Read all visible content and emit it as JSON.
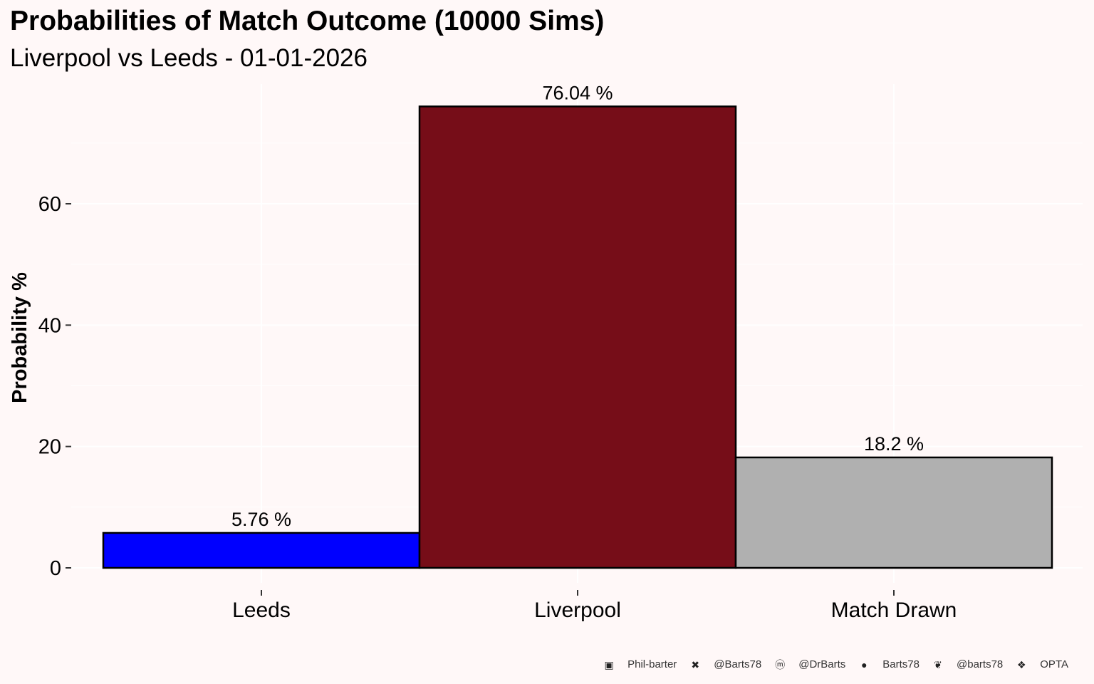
{
  "chart_data": {
    "type": "bar",
    "title": "Probabilities of Match Outcome (10000 Sims)",
    "subtitle": "Liverpool vs Leeds - 01-01-2026",
    "ylabel": "Probability %",
    "xlabel": "",
    "categories": [
      "Leeds",
      "Liverpool",
      "Match Drawn"
    ],
    "values": [
      5.76,
      76.04,
      18.2
    ],
    "data_labels": [
      "5.76  %",
      "76.04  %",
      "18.2  %"
    ],
    "colors": [
      "#0000ff",
      "#760d18",
      "#b0b0b0"
    ],
    "ylim": [
      0,
      80
    ],
    "yticks": [
      0,
      20,
      40,
      60
    ],
    "grid": true
  },
  "footer": {
    "items": [
      {
        "icon": "linkedin-icon",
        "glyph": "▣",
        "text": "Phil-barter"
      },
      {
        "icon": "x-twitter-icon",
        "glyph": "✖",
        "text": "@Barts78"
      },
      {
        "icon": "mastodon-icon",
        "glyph": "ⓜ",
        "text": "@DrBarts"
      },
      {
        "icon": "github-icon",
        "glyph": "●",
        "text": "Barts78"
      },
      {
        "icon": "bluesky-icon",
        "glyph": "❦",
        "text": "@barts78"
      },
      {
        "icon": "dropbox-icon",
        "glyph": "❖",
        "text": "OPTA"
      }
    ]
  }
}
